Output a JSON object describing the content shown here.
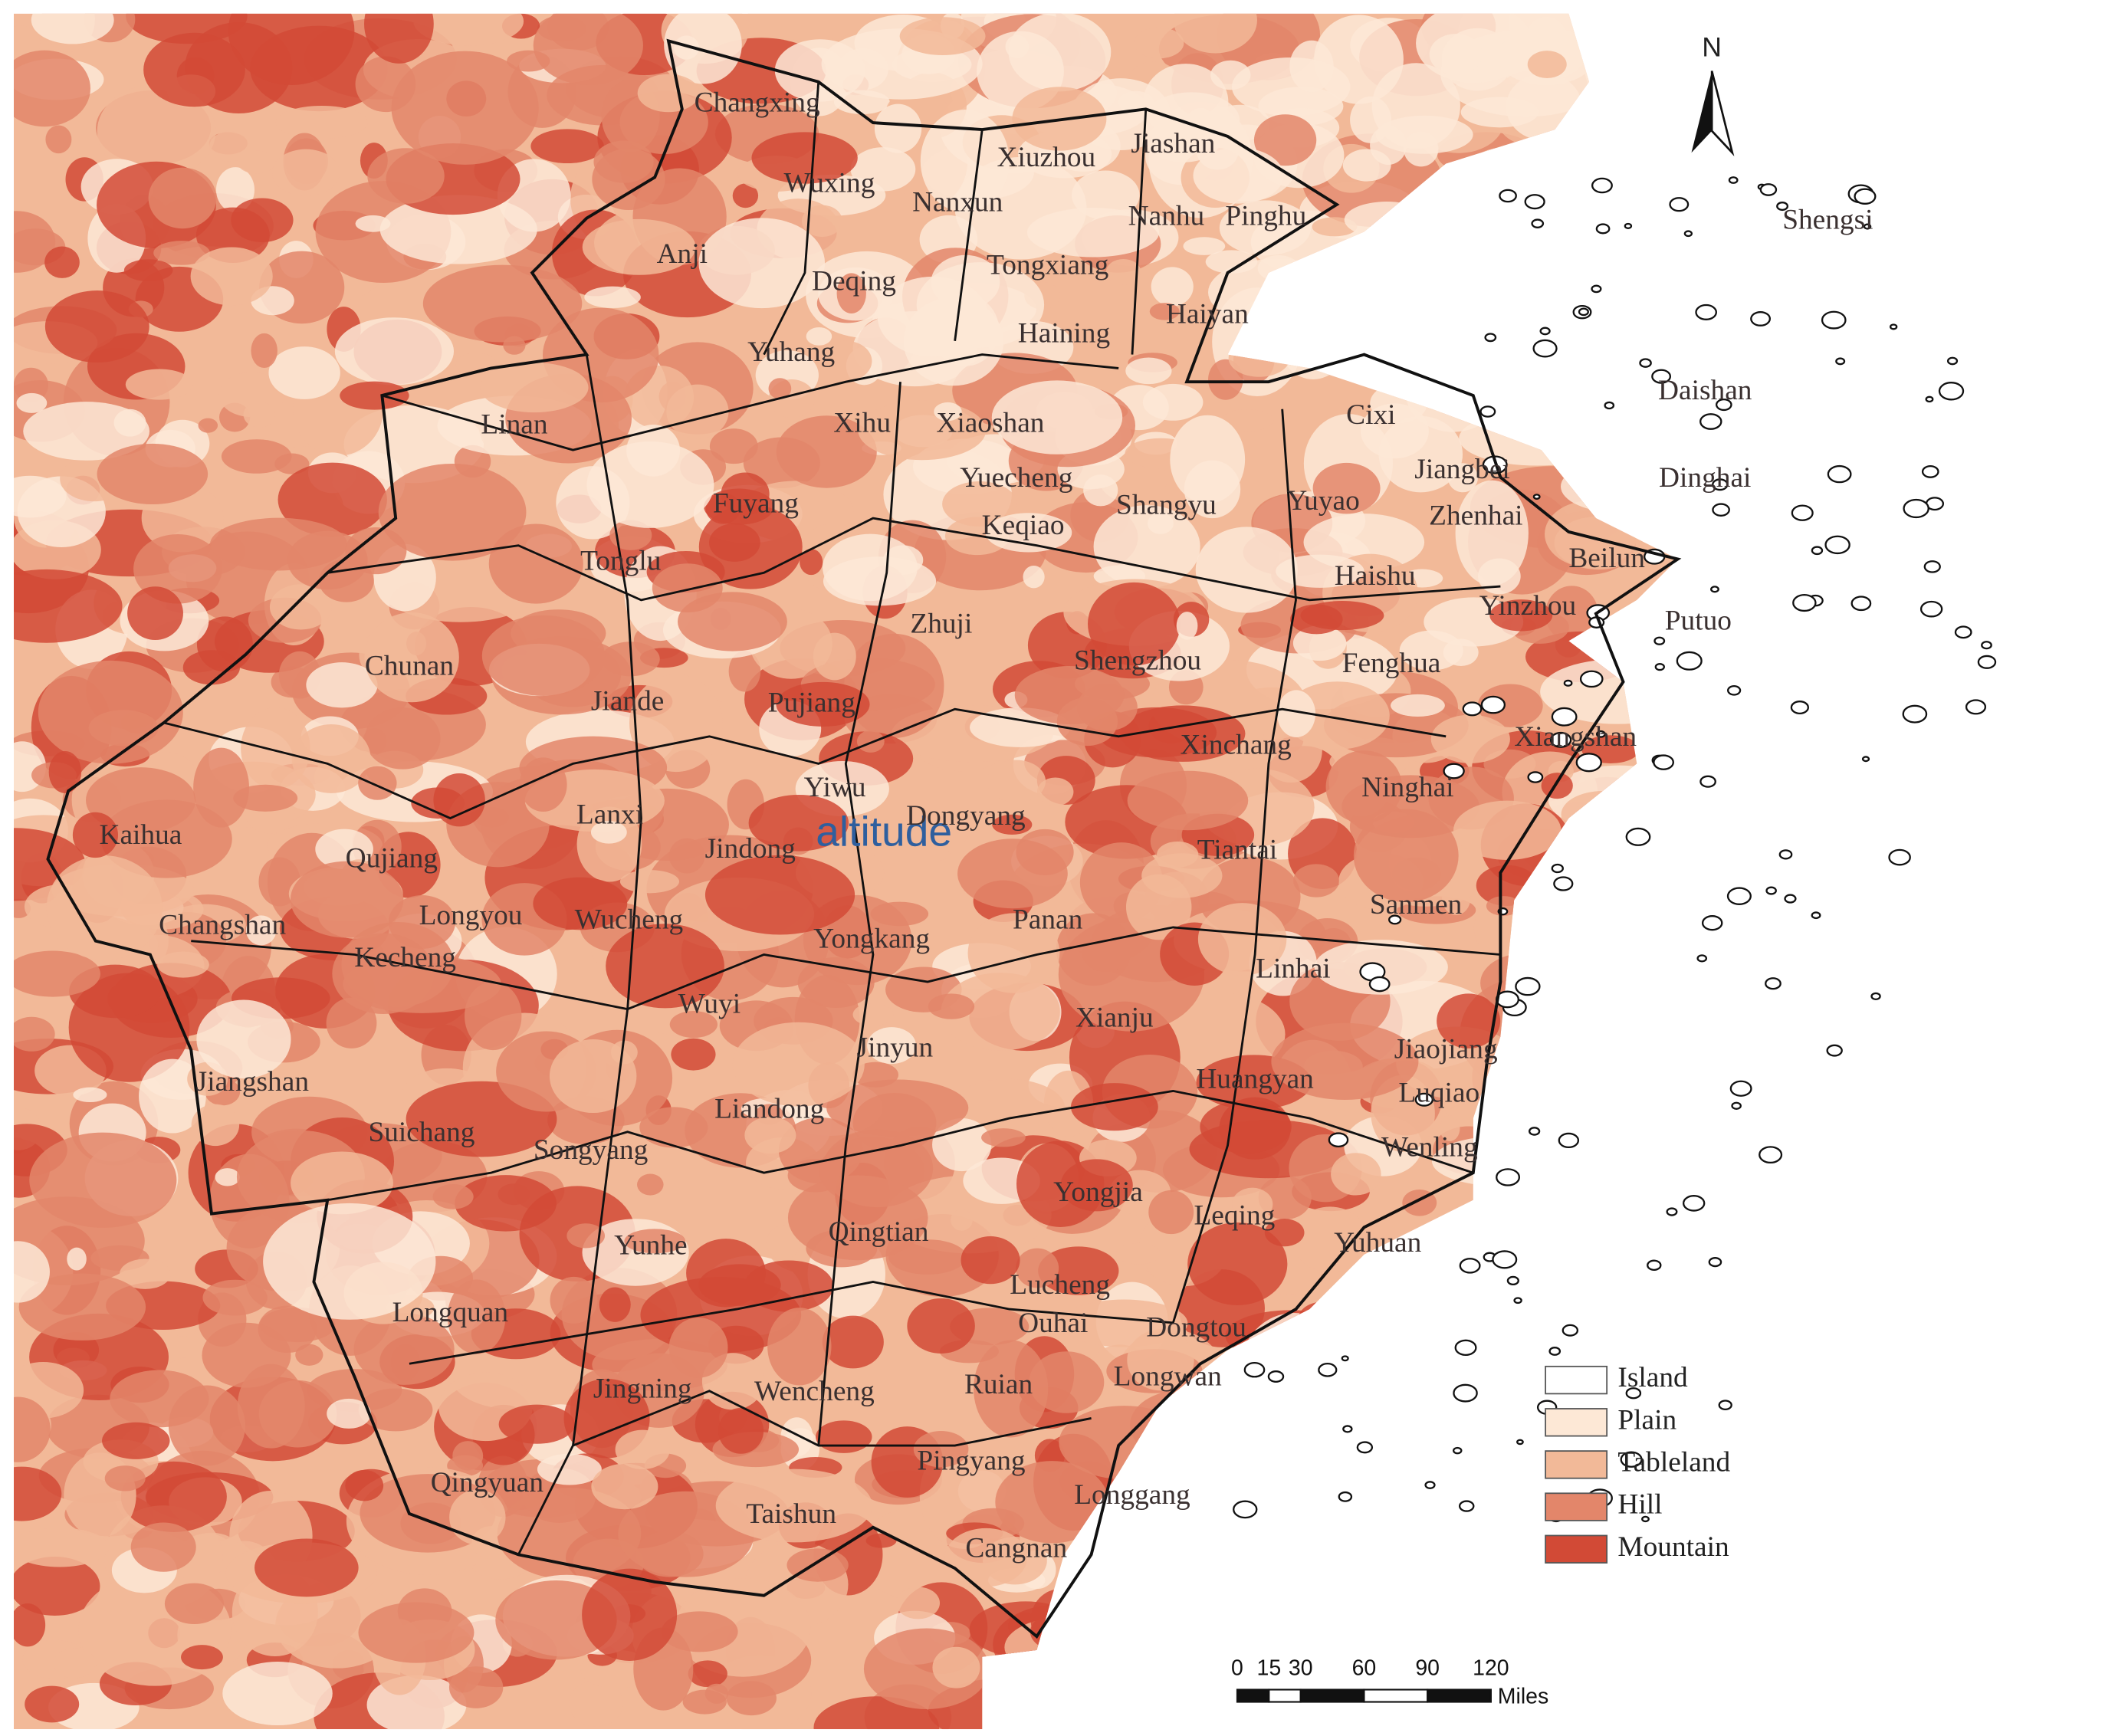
{
  "map": {
    "labels": [
      "Changxing",
      "Wuxing",
      "Xiuzhou",
      "Jiashan",
      "Nanxun",
      "Nanhu",
      "Pinghu",
      "Shengsi",
      "Anji",
      "Deqing",
      "Tongxiang",
      "Haiyan",
      "Haining",
      "Yuhang",
      "Daishan",
      "Linan",
      "Xihu",
      "Xiaoshan",
      "Cixi",
      "Jiangbei",
      "Dinghai",
      "Yuecheng",
      "Fuyang",
      "Shangyu",
      "Yuyao",
      "Zhenhai",
      "Keqiao",
      "Tonglu",
      "Beilun",
      "Haishu",
      "Yinzhou",
      "Putuo",
      "Zhuji",
      "Chunan",
      "Shengzhou",
      "Fenghua",
      "Jiande",
      "Pujiang",
      "Xinchang",
      "Xiangshan",
      "Ninghai",
      "Yiwu",
      "Lanxi",
      "Dongyang",
      "Jindong",
      "Kaihua",
      "Qujiang",
      "Tiantai",
      "Longyou",
      "Wucheng",
      "Changshan",
      "Panan",
      "Sanmen",
      "Yongkang",
      "Kecheng",
      "Linhai",
      "Wuyi",
      "Xianju",
      "Jinyun",
      "Jiaojiang",
      "Jiangshan",
      "Huangyan",
      "Luqiao",
      "Suichang",
      "Liandong",
      "Songyang",
      "Wenling",
      "Yongjia",
      "Qingtian",
      "Leqing",
      "Yunhe",
      "Yuhuan",
      "Lucheng",
      "Longquan",
      "Ouhai",
      "Dongtou",
      "Longwan",
      "Jingning",
      "Wencheng",
      "Ruian",
      "Qingyuan",
      "Pingyang",
      "Longgang",
      "Taishun",
      "Cangnan"
    ],
    "overlay_label": "altitude",
    "north": "N",
    "legend": [
      {
        "name": "Island",
        "color": "#ffffff"
      },
      {
        "name": "Plain",
        "color": "#fde8d6"
      },
      {
        "name": "Tableland",
        "color": "#f2b998"
      },
      {
        "name": "Hill",
        "color": "#e3866a"
      },
      {
        "name": "Mountain",
        "color": "#d24a36"
      }
    ],
    "scale_bar": {
      "ticks": [
        0,
        15,
        30,
        60,
        90,
        120
      ],
      "unit": "Miles"
    }
  }
}
